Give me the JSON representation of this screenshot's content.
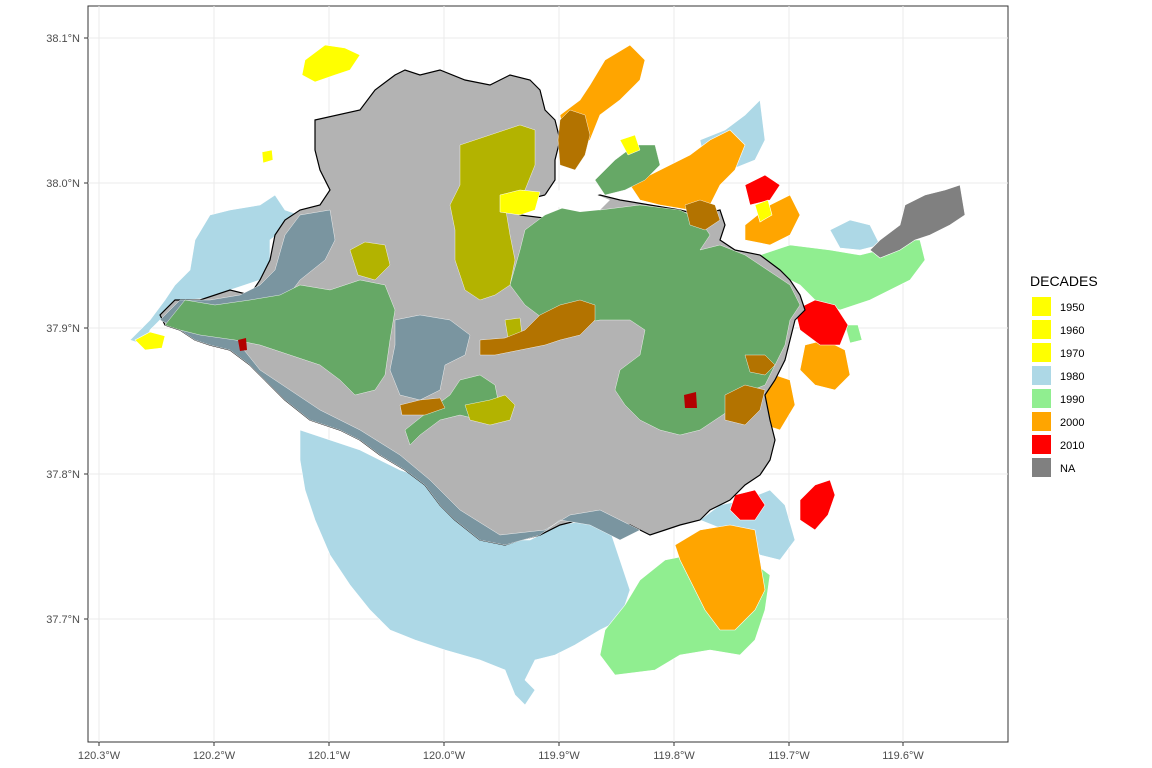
{
  "map": {
    "y_ticks": [
      "38.1°N",
      "38.0°N",
      "37.9°N",
      "37.8°N",
      "37.7°N"
    ],
    "x_ticks": [
      "120.3°W",
      "120.2°W",
      "120.1°W",
      "120.0°W",
      "119.9°W",
      "119.8°W",
      "119.7°W",
      "119.6°W"
    ],
    "legend": {
      "title": "DECADES",
      "items": [
        {
          "label": "1950",
          "color": "#FFFF00"
        },
        {
          "label": "1960",
          "color": "#FFFF00"
        },
        {
          "label": "1970",
          "color": "#FFFF00"
        },
        {
          "label": "1980",
          "color": "#ADD8E6"
        },
        {
          "label": "1990",
          "color": "#90EE90"
        },
        {
          "label": "2000",
          "color": "#FFA500"
        },
        {
          "label": "2010",
          "color": "#FF0000"
        },
        {
          "label": "NA",
          "color": "#808080"
        }
      ]
    },
    "colors": {
      "boundary_fill": "#B3B3B3",
      "boundary_stroke": "#000000",
      "grid": "#EBEBEB",
      "overlap_1950s": "#B3B300",
      "overlap_1980s": "#7A95A0",
      "overlap_1990s": "#66A866",
      "overlap_2000s": "#B37300",
      "overlap_2010s": "#B30000"
    }
  }
}
